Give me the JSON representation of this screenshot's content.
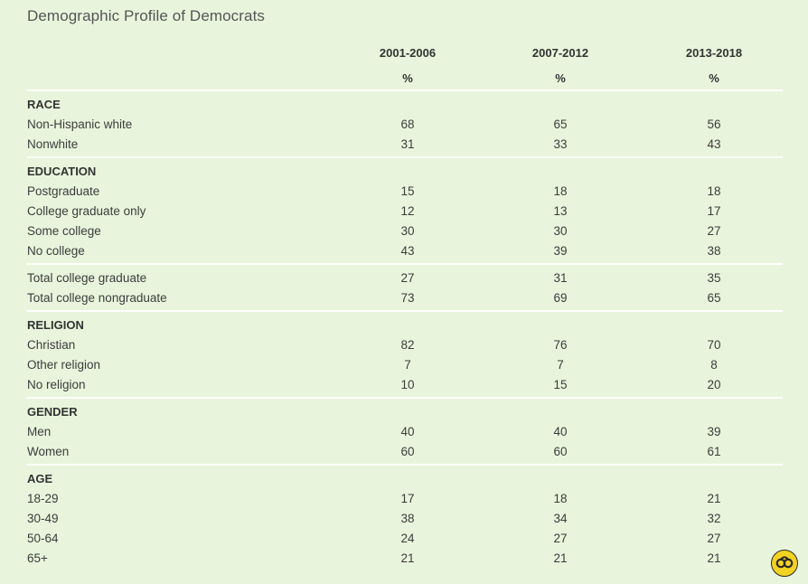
{
  "title": "Demographic Profile of Democrats",
  "columns": [
    "2001-2006",
    "2007-2012",
    "2013-2018"
  ],
  "unit_label": "%",
  "chart_data": {
    "type": "table",
    "title": "Demographic Profile of Democrats",
    "columns": [
      "2001-2006",
      "2007-2012",
      "2013-2018"
    ],
    "unit": "%",
    "sections": [
      {
        "heading": "RACE",
        "rows": [
          {
            "label": "Non-Hispanic white",
            "values": [
              68,
              65,
              56
            ]
          },
          {
            "label": "Nonwhite",
            "values": [
              31,
              33,
              43
            ]
          }
        ]
      },
      {
        "heading": "EDUCATION",
        "rows": [
          {
            "label": "Postgraduate",
            "values": [
              15,
              18,
              18
            ]
          },
          {
            "label": "College graduate only",
            "values": [
              12,
              13,
              17
            ]
          },
          {
            "label": "Some college",
            "values": [
              30,
              30,
              27
            ]
          },
          {
            "label": "No college",
            "values": [
              43,
              39,
              38
            ]
          }
        ]
      },
      {
        "heading": "",
        "rows": [
          {
            "label": "Total college graduate",
            "values": [
              27,
              31,
              35
            ]
          },
          {
            "label": "Total college nongraduate",
            "values": [
              73,
              69,
              65
            ]
          }
        ]
      },
      {
        "heading": "RELIGION",
        "rows": [
          {
            "label": "Christian",
            "values": [
              82,
              76,
              70
            ]
          },
          {
            "label": "Other religion",
            "values": [
              7,
              7,
              8
            ]
          },
          {
            "label": "No religion",
            "values": [
              10,
              15,
              20
            ]
          }
        ]
      },
      {
        "heading": "GENDER",
        "rows": [
          {
            "label": "Men",
            "values": [
              40,
              40,
              39
            ]
          },
          {
            "label": "Women",
            "values": [
              60,
              60,
              61
            ]
          }
        ]
      },
      {
        "heading": "AGE",
        "rows": [
          {
            "label": "18-29",
            "values": [
              17,
              18,
              21
            ]
          },
          {
            "label": "30-49",
            "values": [
              38,
              34,
              32
            ]
          },
          {
            "label": "50-64",
            "values": [
              24,
              27,
              27
            ]
          },
          {
            "label": "65+",
            "values": [
              21,
              21,
              21
            ]
          }
        ]
      }
    ]
  },
  "logo": {
    "icon": "gallup-logo-icon",
    "color": "#f3d321"
  }
}
